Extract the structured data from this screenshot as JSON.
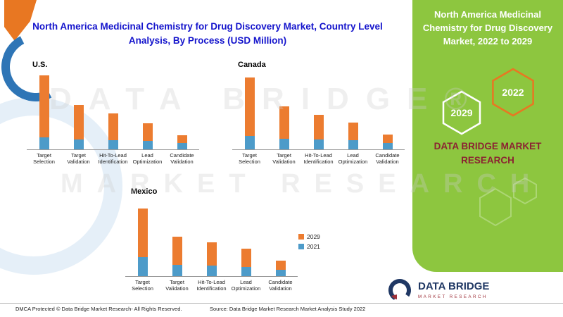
{
  "title": "North America Medicinal Chemistry for Drug Discovery Market, Country Level Analysis, By Process (USD Million)",
  "chart_data": [
    {
      "type": "bar",
      "stacked": true,
      "title": "U.S.",
      "categories": [
        "Target Selection",
        "Target Validation",
        "Hit-To-Lead Identification",
        "Lead Optimization",
        "Candidate Validation"
      ],
      "series": [
        {
          "name": "2021",
          "color": "#4D9BC9",
          "values": [
            16,
            13,
            12,
            11,
            9
          ]
        },
        {
          "name": "2029",
          "color": "#EC7C30",
          "values": [
            84,
            47,
            36,
            24,
            10
          ]
        }
      ],
      "ylabel": "USD Million",
      "axis_labels_shown": false
    },
    {
      "type": "bar",
      "stacked": true,
      "title": "Canada",
      "categories": [
        "Target Selection",
        "Target Validation",
        "Hit-To-Lead Identification",
        "Lead Optimization",
        "Candidate Validation"
      ],
      "series": [
        {
          "name": "2021",
          "color": "#4D9BC9",
          "values": [
            18,
            14,
            13,
            12,
            9
          ]
        },
        {
          "name": "2029",
          "color": "#EC7C30",
          "values": [
            79,
            44,
            33,
            24,
            11
          ]
        }
      ],
      "ylabel": "USD Million",
      "axis_labels_shown": false
    },
    {
      "type": "bar",
      "stacked": true,
      "title": "Mexico",
      "categories": [
        "Target Selection",
        "Target Validation",
        "Hit-To-Lead Identification",
        "Lead Optimization",
        "Candidate Validation"
      ],
      "series": [
        {
          "name": "2021",
          "color": "#4D9BC9",
          "values": [
            26,
            15,
            14,
            12,
            9
          ]
        },
        {
          "name": "2029",
          "color": "#EC7C30",
          "values": [
            66,
            38,
            31,
            25,
            12
          ]
        }
      ],
      "ylabel": "USD Million",
      "axis_labels_shown": false
    }
  ],
  "legend": [
    {
      "label": "2029",
      "color": "#EC7C30"
    },
    {
      "label": "2021",
      "color": "#4D9BC9"
    }
  ],
  "side_panel": {
    "heading": "North America Medicinal Chemistry for Drug Discovery Market, 2022 to 2029",
    "hexagon_years": [
      "2029",
      "2022"
    ],
    "brand": "DATA BRIDGE MARKET RESEARCH"
  },
  "watermark": {
    "line1": "DATA BRIDGE®",
    "line2": "MARKET RESEARCH"
  },
  "logo": {
    "name": "DATA BRIDGE",
    "tagline": "MARKET RESEARCH"
  },
  "footer": {
    "left": "DMCA Protected © Data Bridge Market Research- All Rights Reserved.",
    "source": "Source: Data Bridge Market Research Market Analysis Study 2022"
  },
  "colors": {
    "accent_green": "#8DC63F",
    "title_blue": "#1414CC",
    "brand_maroon": "#8B2332",
    "orange_2029": "#EC7C30",
    "blue_2021": "#4D9BC9"
  }
}
